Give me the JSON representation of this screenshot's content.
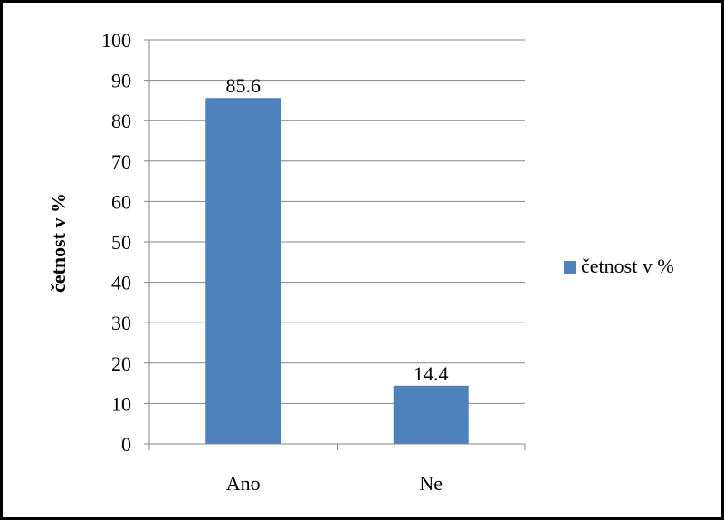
{
  "chart_data": {
    "type": "bar",
    "categories": [
      "Ano",
      "Ne"
    ],
    "series": [
      {
        "name": "četnost v %",
        "values": [
          85.6,
          14.4
        ]
      }
    ],
    "data_labels": [
      "85.6",
      "14.4"
    ],
    "title": "",
    "xlabel": "",
    "ylabel": "četnost v %",
    "ylim": [
      0,
      100
    ],
    "yticks": [
      0,
      10,
      20,
      30,
      40,
      50,
      60,
      70,
      80,
      90,
      100
    ],
    "grid": true,
    "legend": {
      "position": "right",
      "label": "četnost v %"
    },
    "colors": {
      "bar": "#4f81bd",
      "grid": "#868686",
      "axis": "#868686",
      "border": "#000000"
    }
  }
}
